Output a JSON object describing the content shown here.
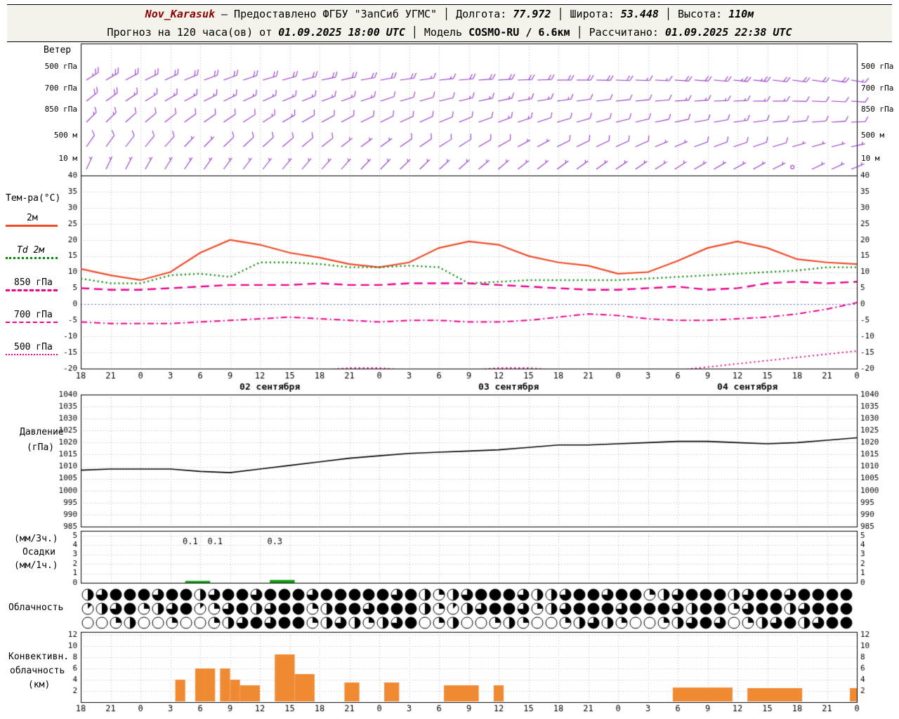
{
  "header": {
    "row1": {
      "station": "Nov_Karasuk",
      "dash": "—",
      "provider": "Предоставлено ФГБУ \"ЗапСиб УГМС\"",
      "sep": "│",
      "lon_label": "Долгота:",
      "lon_value": "77.972",
      "lat_label": "Широта:",
      "lat_value": "53.448",
      "alt_label": "Высота:",
      "alt_value": "110м"
    },
    "row2": {
      "forecast_label": "Прогноз на 120 часа(ов) от",
      "forecast_start": "01.09.2025 18:00 UTC",
      "sep": "│",
      "model_label": "Модель",
      "model_value": "COSMO-RU / 6.6км",
      "calc_label": "Рассчитано:",
      "calc_value": "01.09.2025 22:38 UTC"
    }
  },
  "labels": {
    "wind_title": "Ветер",
    "temp_title": "Тем-ра(°C)",
    "legend": [
      "2м",
      "Td 2м",
      "850 гПа",
      "700 гПа",
      "500 гПа"
    ],
    "pressure_title_1": "Давление",
    "pressure_title_2": "(гПа)",
    "precip_l1": "(мм/3ч.)",
    "precip_l2": "Осадки",
    "precip_l3": "(мм/1ч.)",
    "clouds_title": "Облачность",
    "conv_l1": "Конвективн.",
    "conv_l2": "облачность",
    "conv_l3": "(км)"
  },
  "colors": {
    "t2m": "#f04a28",
    "td2m": "#008a00",
    "magenta": "#ec008c",
    "pressure": "#000000",
    "precip": "#10a010",
    "convective": "#ef8a33",
    "barb": "#9233cc",
    "grid": "#b0b0b0",
    "zero_line": "#5555ff"
  },
  "chart_data": {
    "time_axis": {
      "span_hours": 78,
      "tick_hours": [
        0,
        3,
        6,
        9,
        12,
        15,
        18,
        21,
        24,
        27,
        30,
        33,
        36,
        39,
        42,
        45,
        48,
        51,
        54,
        57,
        60,
        63,
        66,
        69,
        72,
        75,
        78
      ],
      "tick_labels": [
        "18",
        "21",
        "0",
        "3",
        "6",
        "9",
        "12",
        "15",
        "18",
        "21",
        "0",
        "3",
        "6",
        "9",
        "12",
        "15",
        "18",
        "21",
        "0",
        "3",
        "6",
        "9",
        "12",
        "15",
        "18",
        "21",
        "0"
      ],
      "dates": [
        {
          "label": "02 сентября",
          "h": 19
        },
        {
          "label": "03 сентября",
          "h": 43
        },
        {
          "label": "04 сентября",
          "h": 67
        }
      ]
    },
    "wind": {
      "type": "wind-barbs",
      "unit": "kt",
      "levels": [
        {
          "label": "500 гПа",
          "dirs": [
            238,
            240,
            242,
            244,
            246,
            248,
            250,
            250,
            252,
            254,
            255,
            256,
            258,
            258,
            260,
            260,
            262,
            262,
            264,
            265,
            266,
            266,
            268,
            268,
            270,
            270,
            271,
            272,
            272,
            273,
            274,
            274,
            275,
            276,
            276,
            277,
            278,
            278,
            279,
            280
          ],
          "spds": [
            25,
            25,
            22,
            22,
            20,
            20,
            20,
            18,
            18,
            20,
            20,
            22,
            22,
            20,
            20,
            18,
            18,
            15,
            15,
            18,
            20,
            20,
            22,
            22,
            20,
            20,
            18,
            18,
            15,
            15,
            18,
            20,
            22,
            25,
            25,
            22,
            20,
            20,
            18,
            15
          ]
        },
        {
          "label": "700 гПа",
          "dirs": [
            232,
            234,
            236,
            238,
            240,
            242,
            243,
            244,
            245,
            246,
            248,
            248,
            250,
            250,
            252,
            252,
            254,
            254,
            256,
            256,
            258,
            258,
            260,
            260,
            262,
            262,
            263,
            264,
            264,
            265,
            266,
            266,
            268,
            268,
            270,
            270,
            271,
            272,
            273,
            274
          ],
          "spds": [
            18,
            18,
            16,
            16,
            15,
            15,
            14,
            14,
            15,
            15,
            16,
            16,
            15,
            15,
            14,
            12,
            12,
            10,
            12,
            14,
            15,
            16,
            16,
            15,
            14,
            12,
            12,
            10,
            10,
            12,
            14,
            15,
            16,
            16,
            15,
            14,
            12,
            12,
            10,
            10
          ]
        },
        {
          "label": "850 гПа",
          "dirs": [
            225,
            226,
            228,
            230,
            232,
            234,
            235,
            236,
            237,
            238,
            240,
            240,
            242,
            242,
            244,
            244,
            246,
            246,
            248,
            248,
            250,
            250,
            252,
            252,
            254,
            254,
            255,
            256,
            256,
            258,
            258,
            260,
            260,
            262,
            262,
            264,
            264,
            265,
            266,
            268
          ],
          "spds": [
            14,
            14,
            12,
            12,
            10,
            10,
            10,
            12,
            12,
            14,
            14,
            12,
            12,
            10,
            10,
            8,
            8,
            10,
            10,
            12,
            12,
            14,
            14,
            12,
            12,
            10,
            10,
            8,
            8,
            10,
            10,
            12,
            12,
            14,
            12,
            12,
            10,
            10,
            8,
            8
          ]
        },
        {
          "label": "500 м",
          "dirs": [
            215,
            216,
            218,
            220,
            222,
            224,
            225,
            226,
            227,
            228,
            230,
            230,
            232,
            232,
            234,
            234,
            236,
            236,
            238,
            238,
            240,
            240,
            242,
            242,
            244,
            244,
            245,
            246,
            246,
            248,
            248,
            250,
            250,
            252,
            252,
            254,
            254,
            255,
            256,
            258
          ],
          "spds": [
            10,
            10,
            8,
            8,
            8,
            6,
            6,
            8,
            8,
            10,
            10,
            8,
            8,
            6,
            6,
            6,
            8,
            8,
            10,
            10,
            8,
            8,
            6,
            6,
            8,
            8,
            10,
            8,
            8,
            6,
            6,
            8,
            8,
            10,
            8,
            8,
            6,
            6,
            5,
            5
          ]
        },
        {
          "label": "10 м",
          "dirs": [
            205,
            206,
            208,
            210,
            212,
            214,
            215,
            216,
            217,
            218,
            220,
            220,
            222,
            222,
            224,
            224,
            226,
            226,
            228,
            228,
            230,
            230,
            232,
            232,
            234,
            234,
            235,
            236,
            236,
            238,
            238,
            240,
            240,
            242,
            242,
            244,
            244,
            245,
            246,
            248
          ],
          "spds": [
            6,
            6,
            5,
            5,
            5,
            4,
            4,
            5,
            5,
            6,
            6,
            5,
            5,
            4,
            4,
            4,
            5,
            5,
            6,
            6,
            5,
            5,
            4,
            4,
            5,
            5,
            6,
            5,
            5,
            4,
            4,
            5,
            5,
            6,
            5,
            4,
            0,
            4,
            5,
            5
          ]
        }
      ]
    },
    "temperature": {
      "type": "line",
      "ylim": [
        -20,
        40
      ],
      "ytick_step": 5,
      "hours_step": 3,
      "series": [
        {
          "name": "2м",
          "color": "#f04a28",
          "style": "solid",
          "values": [
            11,
            9,
            7.5,
            10,
            16,
            20,
            18.5,
            16,
            14.5,
            12.5,
            11.5,
            13,
            17.5,
            19.5,
            18.5,
            15,
            13,
            12,
            9.5,
            10,
            13.5,
            17.5,
            19.5,
            17.5,
            14,
            13,
            12.5
          ]
        },
        {
          "name": "Td 2м",
          "color": "#008a00",
          "style": "dotted",
          "values": [
            8,
            6.5,
            6.5,
            9,
            9.5,
            8.5,
            13,
            13,
            12.5,
            11.5,
            11.5,
            12,
            11.5,
            6.5,
            7,
            7.5,
            7.5,
            7.5,
            7.5,
            8,
            8.5,
            9,
            9.5,
            10,
            10.5,
            11.5,
            11.5
          ]
        },
        {
          "name": "850 гПа",
          "color": "#ec008c",
          "style": "dashed",
          "values": [
            5,
            4.5,
            4.5,
            5,
            5.5,
            6,
            6,
            6,
            6.5,
            6,
            6,
            6.5,
            6.5,
            6.5,
            6,
            5.5,
            5,
            4.5,
            4.5,
            5,
            5.5,
            4.5,
            5,
            6.5,
            7,
            6.5,
            7
          ]
        },
        {
          "name": "700 гПа",
          "color": "#ec008c",
          "style": "dashdot",
          "values": [
            -5.5,
            -6,
            -6,
            -6,
            -5.5,
            -5,
            -4.5,
            -4,
            -4.5,
            -5,
            -5.5,
            -5,
            -5,
            -5.5,
            -5.5,
            -5,
            -4,
            -3,
            -3.5,
            -4.5,
            -5,
            -5,
            -4.5,
            -4,
            -3,
            -1.5,
            0.5
          ]
        },
        {
          "name": "500 гПа",
          "color": "#ec008c",
          "style": "fine-dotted",
          "values": [
            -22,
            -22,
            -21.5,
            -21.5,
            -21,
            -21,
            -21,
            -20.5,
            -20.5,
            -19.8,
            -19.8,
            -20.5,
            -21,
            -20.5,
            -19.8,
            -19.8,
            -20.5,
            -21,
            -21,
            -21,
            -20.5,
            -19.5,
            -18.5,
            -17.5,
            -16.5,
            -15.5,
            -14.5
          ]
        }
      ]
    },
    "pressure": {
      "type": "line",
      "ylim": [
        985,
        1040
      ],
      "ytick_step": 5,
      "hours_step": 3,
      "color": "#000000",
      "values": [
        1008.5,
        1009,
        1009,
        1009,
        1008,
        1007.5,
        1009,
        1010.5,
        1012,
        1013.5,
        1014.5,
        1015.5,
        1016,
        1016.5,
        1017,
        1018,
        1019,
        1019,
        1019.5,
        1020,
        1020.5,
        1020.5,
        1020,
        1019.5,
        1020,
        1021,
        1022
      ]
    },
    "precip": {
      "type": "bar",
      "ylim": [
        0,
        5.5
      ],
      "yticks": [
        0,
        1,
        2,
        3,
        4,
        5
      ],
      "color": "#10a010",
      "bars": [
        {
          "from": 10.5,
          "to": 13,
          "value": 0.2
        },
        {
          "from": 19,
          "to": 21.5,
          "value": 0.3
        }
      ],
      "value_labels": [
        {
          "h": 11,
          "text": "0.1"
        },
        {
          "h": 13.5,
          "text": "0.1"
        },
        {
          "h": 19.5,
          "text": "0.3"
        }
      ]
    },
    "cloudiness": {
      "type": "symbol-rows",
      "max_eighths": 8,
      "rows": [
        [
          4,
          6,
          8,
          8,
          8,
          6,
          8,
          8,
          4,
          6,
          8,
          8,
          6,
          8,
          8,
          8,
          6,
          8,
          8,
          8,
          8,
          8,
          6,
          8,
          4,
          2,
          4,
          6,
          8,
          8,
          8,
          6,
          4,
          4,
          6,
          8,
          8,
          6,
          8,
          8,
          2,
          4,
          6,
          8,
          8,
          8,
          4,
          6,
          8,
          8,
          6,
          8,
          8,
          8,
          8
        ],
        [
          1,
          4,
          6,
          8,
          2,
          4,
          6,
          8,
          1,
          2,
          6,
          8,
          4,
          6,
          8,
          8,
          2,
          4,
          8,
          8,
          6,
          8,
          8,
          8,
          4,
          2,
          1,
          4,
          6,
          8,
          8,
          6,
          2,
          4,
          6,
          8,
          8,
          8,
          6,
          8,
          8,
          8,
          6,
          4,
          8,
          8,
          2,
          6,
          8,
          8,
          4,
          6,
          8,
          8,
          8
        ],
        [
          0,
          0,
          2,
          4,
          0,
          0,
          2,
          0,
          0,
          2,
          4,
          6,
          8,
          6,
          8,
          8,
          2,
          4,
          6,
          4,
          2,
          4,
          6,
          8,
          0,
          2,
          4,
          0,
          0,
          2,
          4,
          2,
          0,
          0,
          2,
          4,
          6,
          4,
          2,
          0,
          0,
          2,
          4,
          6,
          8,
          6,
          0,
          2,
          4,
          6,
          8,
          4,
          6,
          8,
          8
        ]
      ]
    },
    "convective": {
      "type": "bar",
      "ylim": [
        0,
        12.5
      ],
      "yticks": [
        2,
        4,
        6,
        8,
        10,
        12
      ],
      "color": "#ef8a33",
      "bars": [
        {
          "from": 9.5,
          "to": 10.5,
          "top": 4
        },
        {
          "from": 11.5,
          "to": 12.5,
          "top": 6
        },
        {
          "from": 12.5,
          "to": 13.5,
          "top": 6
        },
        {
          "from": 14,
          "to": 15,
          "top": 6
        },
        {
          "from": 15,
          "to": 16,
          "top": 4
        },
        {
          "from": 16,
          "to": 18,
          "top": 3
        },
        {
          "from": 19.5,
          "to": 21.5,
          "top": 8.5
        },
        {
          "from": 21.5,
          "to": 23.5,
          "top": 5
        },
        {
          "from": 26.5,
          "to": 28,
          "top": 3.5
        },
        {
          "from": 30.5,
          "to": 32,
          "top": 3.5
        },
        {
          "from": 36.5,
          "to": 40,
          "top": 3
        },
        {
          "from": 41.5,
          "to": 42.5,
          "top": 3
        },
        {
          "from": 59.5,
          "to": 65.5,
          "top": 2.6
        },
        {
          "from": 67,
          "to": 72.5,
          "top": 2.5
        },
        {
          "from": 77.3,
          "to": 78,
          "top": 2.5
        }
      ]
    }
  }
}
